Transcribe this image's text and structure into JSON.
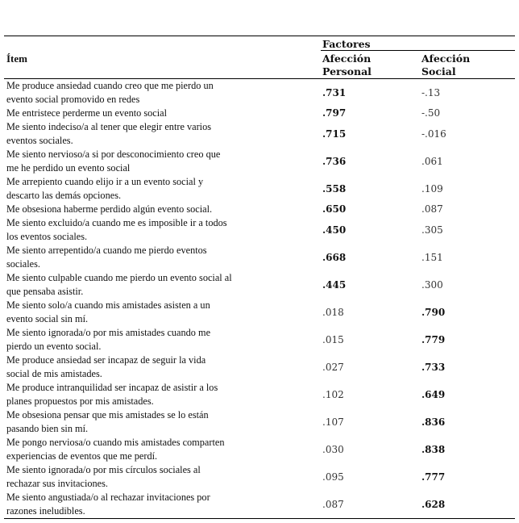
{
  "header": {
    "item": "Ítem",
    "factors": "Factores",
    "col1": "Afección\nPersonal",
    "col2": "Afección\nSocial"
  },
  "rows": [
    {
      "item": "Me produce ansiedad cuando creo que me pierdo un\nevento social promovido en redes",
      "personal": ".731",
      "social": "-.13",
      "bold": "personal"
    },
    {
      "item": "Me entristece perderme un evento social",
      "personal": ".797",
      "social": "-.50",
      "bold": "personal"
    },
    {
      "item": "Me siento indeciso/a al tener que elegir entre varios\neventos sociales.",
      "personal": ".715",
      "social": "-.016",
      "bold": "personal"
    },
    {
      "item": "Me siento nervioso/a si por desconocimiento creo que\nme he perdido un evento social",
      "personal": ".736",
      "social": ".061",
      "bold": "personal"
    },
    {
      "item": "Me arrepiento cuando elijo ir a un evento social y\ndescarto las demás opciones.",
      "personal": ".558",
      "social": ".109",
      "bold": "personal"
    },
    {
      "item": "Me obsesiona haberme perdido algún evento social.",
      "personal": ".650",
      "social": ".087",
      "bold": "personal"
    },
    {
      "item": "Me siento excluido/a cuando me es imposible ir a todos\nlos eventos sociales.",
      "personal": ".450",
      "social": ".305",
      "bold": "personal"
    },
    {
      "item": "Me siento arrepentido/a cuando me pierdo eventos\nsociales.",
      "personal": ".668",
      "social": ".151",
      "bold": "personal"
    },
    {
      "item": "Me siento culpable cuando me pierdo un evento social al\nque pensaba asistir.",
      "personal": ".445",
      "social": ".300",
      "bold": "personal"
    },
    {
      "item": "Me siento solo/a cuando mis amistades asisten a un\nevento social sin mí.",
      "personal": ".018",
      "social": ".790",
      "bold": "social"
    },
    {
      "item": "Me siento ignorada/o por mis amistades cuando me\npierdo un evento social.",
      "personal": ".015",
      "social": ".779",
      "bold": "social"
    },
    {
      "item": "Me produce ansiedad ser incapaz de seguir la vida\nsocial de mis amistades.",
      "personal": ".027",
      "social": ".733",
      "bold": "social"
    },
    {
      "item": "Me produce intranquilidad ser incapaz de asistir a los\nplanes propuestos por mis amistades.",
      "personal": ".102",
      "social": ".649",
      "bold": "social"
    },
    {
      "item": "Me obsesiona pensar que mis amistades se lo están\npasando bien sin mí.",
      "personal": ".107",
      "social": ".836",
      "bold": "social"
    },
    {
      "item": "Me pongo nerviosa/o cuando mis amistades comparten\nexperiencias de eventos que me perdí.",
      "personal": ".030",
      "social": ".838",
      "bold": "social"
    },
    {
      "item": "Me siento ignorada/o por mis círculos sociales al\nrechazar sus invitaciones.",
      "personal": ".095",
      "social": ".777",
      "bold": "social"
    },
    {
      "item": "Me siento angustiada/o al rechazar invitaciones por\nrazones ineludibles.",
      "personal": ".087",
      "social": ".628",
      "bold": "social"
    }
  ]
}
